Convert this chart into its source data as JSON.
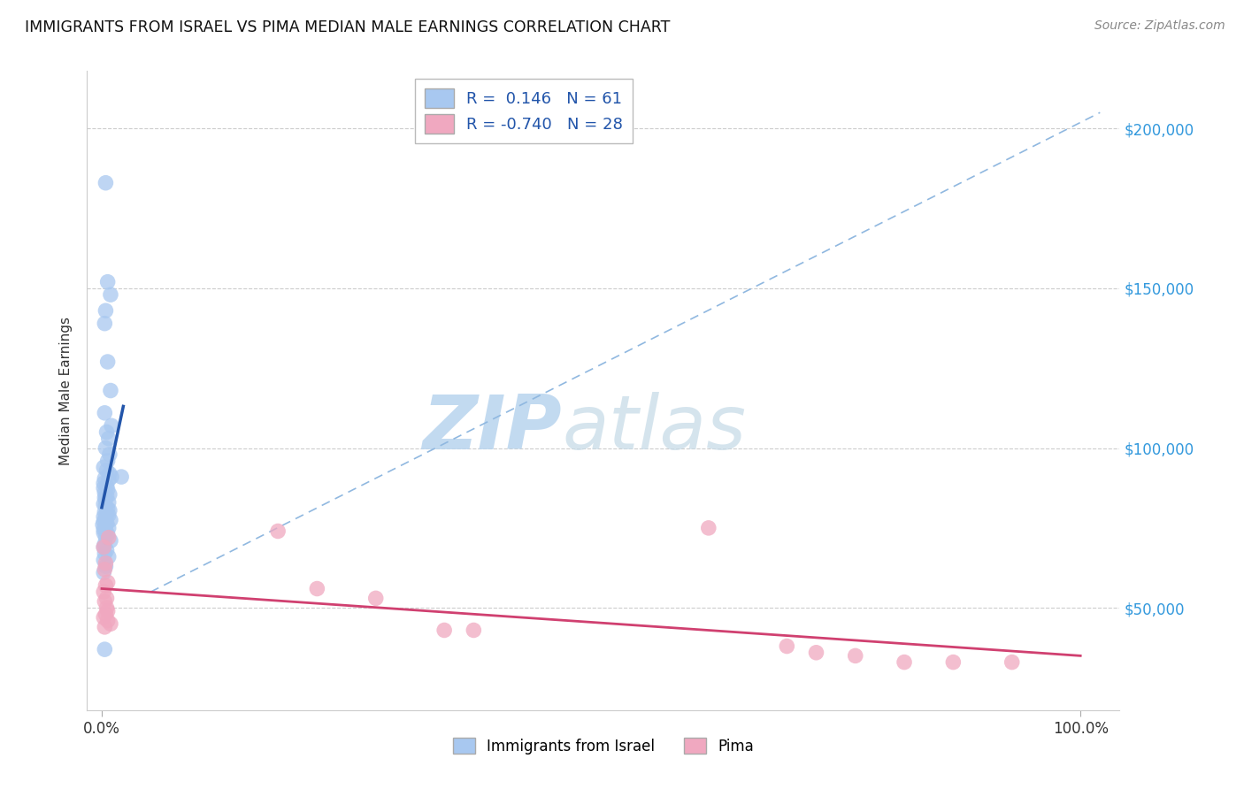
{
  "title": "IMMIGRANTS FROM ISRAEL VS PIMA MEDIAN MALE EARNINGS CORRELATION CHART",
  "source": "Source: ZipAtlas.com",
  "ylabel": "Median Male Earnings",
  "r_blue": 0.146,
  "n_blue": 61,
  "r_pink": -0.74,
  "n_pink": 28,
  "legend_label_blue": "Immigrants from Israel",
  "legend_label_pink": "Pima",
  "blue_color": "#a8c8f0",
  "pink_color": "#f0a8c0",
  "blue_line_color": "#2255aa",
  "pink_line_color": "#d04070",
  "diag_line_color": "#90b8e0",
  "watermark_color": "#d0e4f4",
  "xlim": [
    -0.015,
    1.04
  ],
  "ylim": [
    18000,
    218000
  ],
  "ytick_vals": [
    50000,
    100000,
    150000,
    200000
  ],
  "ytick_labels": [
    "$50,000",
    "$100,000",
    "$150,000",
    "$200,000"
  ],
  "blue_dots": [
    [
      0.004,
      183000
    ],
    [
      0.006,
      152000
    ],
    [
      0.009,
      148000
    ],
    [
      0.004,
      143000
    ],
    [
      0.003,
      139000
    ],
    [
      0.006,
      127000
    ],
    [
      0.009,
      118000
    ],
    [
      0.003,
      111000
    ],
    [
      0.01,
      107000
    ],
    [
      0.005,
      105000
    ],
    [
      0.007,
      103000
    ],
    [
      0.004,
      100000
    ],
    [
      0.008,
      98000
    ],
    [
      0.006,
      96000
    ],
    [
      0.002,
      94000
    ],
    [
      0.005,
      93000
    ],
    [
      0.008,
      92000
    ],
    [
      0.01,
      91000
    ],
    [
      0.003,
      90500
    ],
    [
      0.007,
      90000
    ],
    [
      0.002,
      89000
    ],
    [
      0.005,
      88000
    ],
    [
      0.002,
      87500
    ],
    [
      0.006,
      87000
    ],
    [
      0.003,
      86000
    ],
    [
      0.008,
      85500
    ],
    [
      0.005,
      85000
    ],
    [
      0.003,
      84500
    ],
    [
      0.004,
      84000
    ],
    [
      0.007,
      83000
    ],
    [
      0.002,
      82500
    ],
    [
      0.004,
      82000
    ],
    [
      0.006,
      81000
    ],
    [
      0.008,
      80500
    ],
    [
      0.003,
      80000
    ],
    [
      0.005,
      79500
    ],
    [
      0.007,
      79000
    ],
    [
      0.002,
      78500
    ],
    [
      0.004,
      78000
    ],
    [
      0.009,
      77500
    ],
    [
      0.002,
      77000
    ],
    [
      0.005,
      76500
    ],
    [
      0.001,
      76000
    ],
    [
      0.004,
      75500
    ],
    [
      0.007,
      75000
    ],
    [
      0.002,
      74500
    ],
    [
      0.004,
      74000
    ],
    [
      0.002,
      73500
    ],
    [
      0.006,
      73000
    ],
    [
      0.004,
      72000
    ],
    [
      0.009,
      71000
    ],
    [
      0.003,
      70000
    ],
    [
      0.002,
      69000
    ],
    [
      0.005,
      68000
    ],
    [
      0.003,
      67000
    ],
    [
      0.007,
      66000
    ],
    [
      0.002,
      65000
    ],
    [
      0.004,
      63000
    ],
    [
      0.002,
      61000
    ],
    [
      0.003,
      37000
    ],
    [
      0.02,
      91000
    ]
  ],
  "pink_dots": [
    [
      0.002,
      69000
    ],
    [
      0.004,
      64000
    ],
    [
      0.003,
      62000
    ],
    [
      0.006,
      58000
    ],
    [
      0.004,
      57000
    ],
    [
      0.002,
      55000
    ],
    [
      0.007,
      72000
    ],
    [
      0.005,
      53000
    ],
    [
      0.003,
      52000
    ],
    [
      0.005,
      50000
    ],
    [
      0.006,
      49000
    ],
    [
      0.004,
      48000
    ],
    [
      0.002,
      47000
    ],
    [
      0.006,
      46000
    ],
    [
      0.009,
      45000
    ],
    [
      0.003,
      44000
    ],
    [
      0.18,
      74000
    ],
    [
      0.22,
      56000
    ],
    [
      0.28,
      53000
    ],
    [
      0.35,
      43000
    ],
    [
      0.38,
      43000
    ],
    [
      0.62,
      75000
    ],
    [
      0.7,
      38000
    ],
    [
      0.73,
      36000
    ],
    [
      0.77,
      35000
    ],
    [
      0.82,
      33000
    ],
    [
      0.87,
      33000
    ],
    [
      0.93,
      33000
    ]
  ]
}
